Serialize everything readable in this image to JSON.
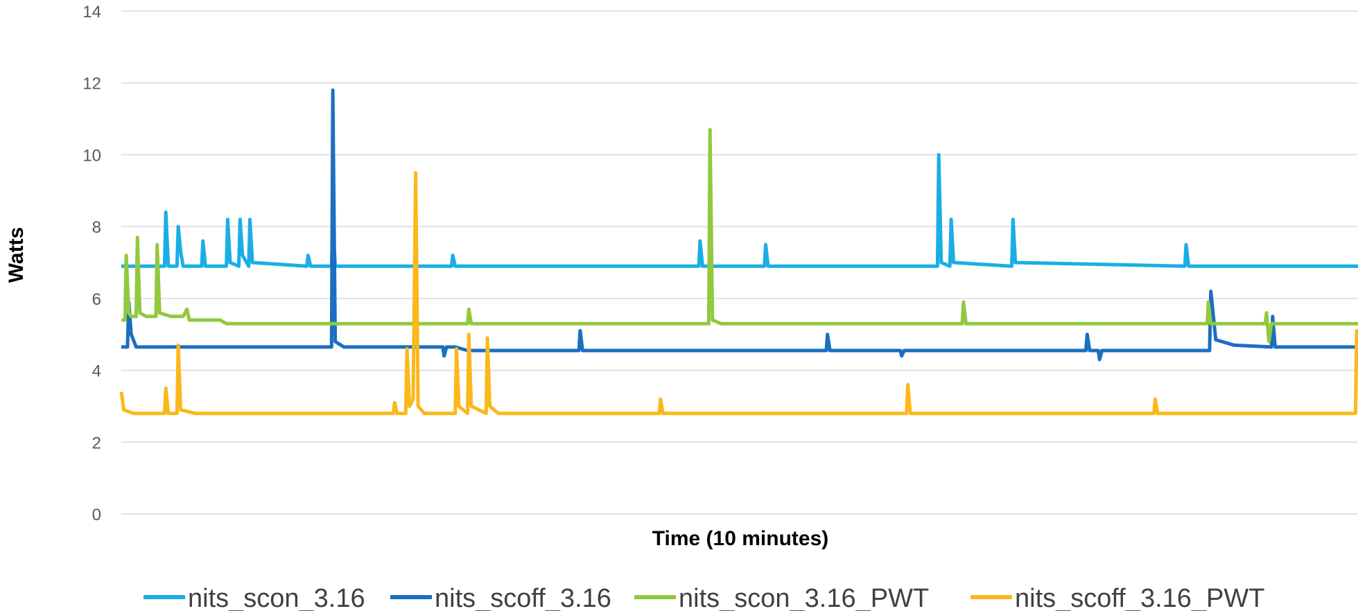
{
  "chart_data": {
    "type": "line",
    "xlabel": "Time (10 minutes)",
    "ylabel": "Watts",
    "ylim": [
      0,
      14
    ],
    "yticks": [
      0,
      2,
      4,
      6,
      8,
      10,
      12,
      14
    ],
    "xlim": [
      0,
      10
    ],
    "grid": true,
    "legend_position": "bottom",
    "series": [
      {
        "name": "nits_scon_3.16",
        "color": "#1aaee5",
        "baseline": 6.9,
        "points": [
          [
            0,
            6.9
          ],
          [
            0.35,
            6.9
          ],
          [
            0.36,
            8.4
          ],
          [
            0.38,
            6.9
          ],
          [
            0.45,
            6.9
          ],
          [
            0.46,
            8.0
          ],
          [
            0.48,
            7.3
          ],
          [
            0.5,
            6.9
          ],
          [
            0.65,
            6.9
          ],
          [
            0.66,
            7.6
          ],
          [
            0.68,
            6.9
          ],
          [
            0.85,
            6.9
          ],
          [
            0.86,
            8.2
          ],
          [
            0.88,
            7.0
          ],
          [
            0.95,
            6.9
          ],
          [
            0.96,
            8.2
          ],
          [
            0.98,
            7.2
          ],
          [
            1.03,
            6.9
          ],
          [
            1.04,
            8.2
          ],
          [
            1.06,
            7.0
          ],
          [
            1.5,
            6.9
          ],
          [
            1.51,
            7.2
          ],
          [
            1.53,
            6.9
          ],
          [
            1.7,
            6.9
          ],
          [
            1.71,
            8.1
          ],
          [
            1.73,
            6.9
          ],
          [
            2.67,
            6.9
          ],
          [
            2.68,
            7.2
          ],
          [
            2.7,
            6.9
          ],
          [
            4.67,
            6.9
          ],
          [
            4.68,
            7.6
          ],
          [
            4.7,
            6.9
          ],
          [
            5.2,
            6.9
          ],
          [
            5.21,
            7.5
          ],
          [
            5.23,
            6.9
          ],
          [
            6.6,
            6.9
          ],
          [
            6.61,
            10.0
          ],
          [
            6.63,
            7.0
          ],
          [
            6.7,
            6.9
          ],
          [
            6.71,
            8.2
          ],
          [
            6.73,
            7.0
          ],
          [
            7.2,
            6.9
          ],
          [
            7.21,
            8.2
          ],
          [
            7.23,
            7.0
          ],
          [
            8.6,
            6.9
          ],
          [
            8.61,
            7.5
          ],
          [
            8.63,
            6.9
          ],
          [
            10,
            6.9
          ]
        ]
      },
      {
        "name": "nits_scoff_3.16",
        "color": "#1b6ec2",
        "baseline": 4.65,
        "points": [
          [
            0,
            4.65
          ],
          [
            0.05,
            4.65
          ],
          [
            0.06,
            5.9
          ],
          [
            0.08,
            5.0
          ],
          [
            0.12,
            4.65
          ],
          [
            1.7,
            4.65
          ],
          [
            1.71,
            11.8
          ],
          [
            1.73,
            4.8
          ],
          [
            1.8,
            4.65
          ],
          [
            2.6,
            4.65
          ],
          [
            2.61,
            4.4
          ],
          [
            2.63,
            4.65
          ],
          [
            2.7,
            4.65
          ],
          [
            2.8,
            4.55
          ],
          [
            3.7,
            4.55
          ],
          [
            3.71,
            5.1
          ],
          [
            3.73,
            4.55
          ],
          [
            5.7,
            4.55
          ],
          [
            5.71,
            5.0
          ],
          [
            5.73,
            4.55
          ],
          [
            6.3,
            4.55
          ],
          [
            6.31,
            4.4
          ],
          [
            6.33,
            4.55
          ],
          [
            7.8,
            4.55
          ],
          [
            7.81,
            5.0
          ],
          [
            7.83,
            4.55
          ],
          [
            7.9,
            4.55
          ],
          [
            7.91,
            4.3
          ],
          [
            7.93,
            4.55
          ],
          [
            8.8,
            4.55
          ],
          [
            8.81,
            6.2
          ],
          [
            8.85,
            4.85
          ],
          [
            9.0,
            4.7
          ],
          [
            9.3,
            4.65
          ],
          [
            9.31,
            5.5
          ],
          [
            9.33,
            4.65
          ],
          [
            10,
            4.65
          ]
        ]
      },
      {
        "name": "nits_scon_3.16_PWT",
        "color": "#92c83e",
        "baseline": 5.3,
        "points": [
          [
            0,
            5.4
          ],
          [
            0.03,
            5.4
          ],
          [
            0.04,
            7.2
          ],
          [
            0.06,
            5.6
          ],
          [
            0.08,
            5.5
          ],
          [
            0.12,
            5.5
          ],
          [
            0.13,
            7.7
          ],
          [
            0.15,
            5.6
          ],
          [
            0.2,
            5.5
          ],
          [
            0.28,
            5.5
          ],
          [
            0.29,
            7.5
          ],
          [
            0.31,
            5.6
          ],
          [
            0.4,
            5.5
          ],
          [
            0.5,
            5.5
          ],
          [
            0.53,
            5.7
          ],
          [
            0.55,
            5.4
          ],
          [
            0.8,
            5.4
          ],
          [
            0.85,
            5.3
          ],
          [
            2.8,
            5.3
          ],
          [
            2.81,
            5.7
          ],
          [
            2.83,
            5.3
          ],
          [
            4.75,
            5.3
          ],
          [
            4.76,
            10.7
          ],
          [
            4.78,
            5.4
          ],
          [
            4.85,
            5.3
          ],
          [
            6.8,
            5.3
          ],
          [
            6.81,
            5.9
          ],
          [
            6.83,
            5.3
          ],
          [
            8.78,
            5.3
          ],
          [
            8.79,
            5.9
          ],
          [
            8.81,
            5.3
          ],
          [
            9.25,
            5.3
          ],
          [
            9.26,
            5.6
          ],
          [
            9.28,
            4.8
          ],
          [
            9.3,
            5.3
          ],
          [
            10,
            5.3
          ]
        ]
      },
      {
        "name": "nits_scoff_3.16_PWT",
        "color": "#fbb81a",
        "baseline": 2.8,
        "points": [
          [
            0,
            3.4
          ],
          [
            0.02,
            2.9
          ],
          [
            0.1,
            2.8
          ],
          [
            0.35,
            2.8
          ],
          [
            0.36,
            3.5
          ],
          [
            0.38,
            2.8
          ],
          [
            0.45,
            2.8
          ],
          [
            0.46,
            4.7
          ],
          [
            0.48,
            2.9
          ],
          [
            0.6,
            2.8
          ],
          [
            2.2,
            2.8
          ],
          [
            2.21,
            3.1
          ],
          [
            2.23,
            2.8
          ],
          [
            2.3,
            2.8
          ],
          [
            2.31,
            4.6
          ],
          [
            2.33,
            3.0
          ],
          [
            2.36,
            3.2
          ],
          [
            2.38,
            9.5
          ],
          [
            2.4,
            3.0
          ],
          [
            2.45,
            2.8
          ],
          [
            2.7,
            2.8
          ],
          [
            2.71,
            4.6
          ],
          [
            2.73,
            3.0
          ],
          [
            2.8,
            2.8
          ],
          [
            2.81,
            5.0
          ],
          [
            2.83,
            3.0
          ],
          [
            2.95,
            2.8
          ],
          [
            2.96,
            4.9
          ],
          [
            2.98,
            3.0
          ],
          [
            3.05,
            2.8
          ],
          [
            4.35,
            2.8
          ],
          [
            4.36,
            3.2
          ],
          [
            4.38,
            2.8
          ],
          [
            6.35,
            2.8
          ],
          [
            6.36,
            3.6
          ],
          [
            6.38,
            2.8
          ],
          [
            8.35,
            2.8
          ],
          [
            8.36,
            3.2
          ],
          [
            8.38,
            2.8
          ],
          [
            9.98,
            2.8
          ],
          [
            9.99,
            5.1
          ],
          [
            10,
            5.1
          ]
        ]
      }
    ]
  }
}
